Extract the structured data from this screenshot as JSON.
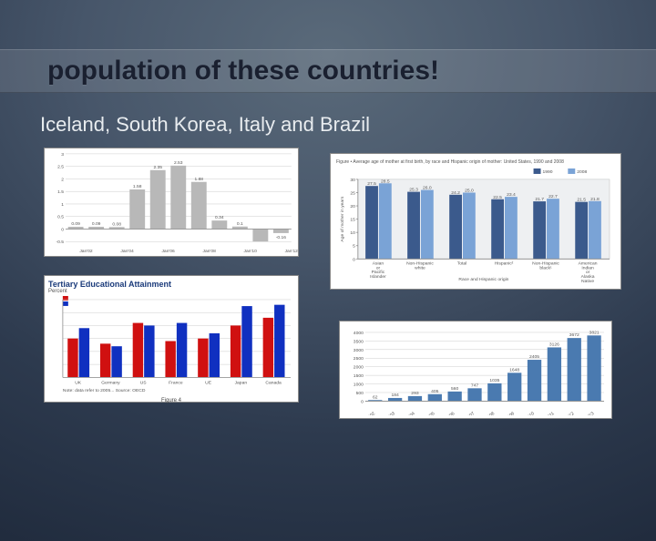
{
  "title": "population of these countries!",
  "subtitle": "Iceland, South Korea, Italy and Brazil",
  "chart1": {
    "type": "bar",
    "bar_color": "#b8b8b8",
    "background": "#ffffff",
    "grid_color": "#d0d0d0",
    "ylim": [
      -0.5,
      3.0
    ],
    "yticks": [
      -0.5,
      0,
      0.5,
      1,
      1.5,
      2,
      2.5,
      3
    ],
    "categories": [
      "Jan'02",
      "Jan'04",
      "Jan'06",
      "Jan'08",
      "Jan'10",
      "Jan'12"
    ],
    "values": [
      0.09,
      0.09,
      0.08,
      1.58,
      2.35,
      2.53,
      1.88,
      0.34,
      0.1,
      -0.5,
      -0.16
    ],
    "value_labels": [
      "0.09",
      "0.09",
      "0.08",
      "1.58",
      "2.35",
      "2.53",
      "1.88",
      "0.34",
      "0.1",
      "",
      "-0.16"
    ]
  },
  "chart2": {
    "type": "grouped-bar",
    "title": "Figure • Average age of mother at first birth, by race and Hispanic origin of mother: United States, 1990 and 2008",
    "legend": [
      "1990",
      "2008"
    ],
    "legend_colors": [
      "#3b5a8c",
      "#7aa3d6"
    ],
    "background": "#eef0f2",
    "border_color": "#888888",
    "ylabel": "Age of mother in years",
    "ylim": [
      0,
      30
    ],
    "yticks": [
      0,
      5,
      10,
      15,
      20,
      25,
      30
    ],
    "categories": [
      "Asian or Pacific Islander",
      "Non-Hispanic white",
      "Total",
      "Hispanic²",
      "Non-Hispanic black¹",
      "American Indian or Alaska Native"
    ],
    "series": {
      "1990": [
        27.5,
        25.3,
        24.2,
        22.5,
        21.7,
        21.5
      ],
      "2008": [
        28.5,
        26.0,
        25.0,
        23.4,
        22.7,
        21.8
      ]
    },
    "value_labels_top": [
      [
        "27.5",
        "28.5"
      ],
      [
        "25.3",
        "26.0"
      ],
      [
        "24.2",
        "25.0"
      ],
      [
        "22.5",
        "23.4"
      ],
      [
        "21.7",
        "22.7"
      ],
      [
        "21.5",
        "21.8"
      ]
    ],
    "xlabel": "Race and Hispanic origin"
  },
  "chart3": {
    "type": "grouped-bar",
    "title": "Tertiary Educational Attainment",
    "title_color": "#1a3a7a",
    "colors": {
      "red": "#d01010",
      "blue": "#1030c0"
    },
    "categories": [
      "UK",
      "Germany",
      "US",
      "France",
      "UE",
      "Japan",
      "Canada"
    ],
    "series": {
      "red": [
        30,
        26,
        42,
        28,
        30,
        40,
        46
      ],
      "blue": [
        38,
        24,
        40,
        42,
        34,
        55,
        56
      ]
    },
    "ylim": [
      0,
      60
    ],
    "caption": "Figure 4"
  },
  "chart4": {
    "type": "bar",
    "bar_color": "#4a7ab0",
    "background": "#ffffff",
    "grid_color": "#d8d8d8",
    "ylim": [
      0,
      4000
    ],
    "yticks": [
      0,
      500,
      1000,
      1500,
      2000,
      2500,
      3000,
      3500,
      4000
    ],
    "categories": [
      "2002",
      "2003",
      "2004",
      "2005",
      "2006",
      "2007",
      "2008",
      "2009",
      "2010",
      "2011",
      "2012",
      "mar/13"
    ],
    "values": [
      62,
      184,
      293,
      405,
      560,
      747,
      1035,
      1648,
      2405,
      3126,
      3672,
      3821
    ],
    "value_labels": [
      "62",
      "184",
      "293",
      "405",
      "560",
      "747",
      "1035",
      "1648",
      "2405",
      "3126",
      "3672",
      "3821"
    ]
  }
}
